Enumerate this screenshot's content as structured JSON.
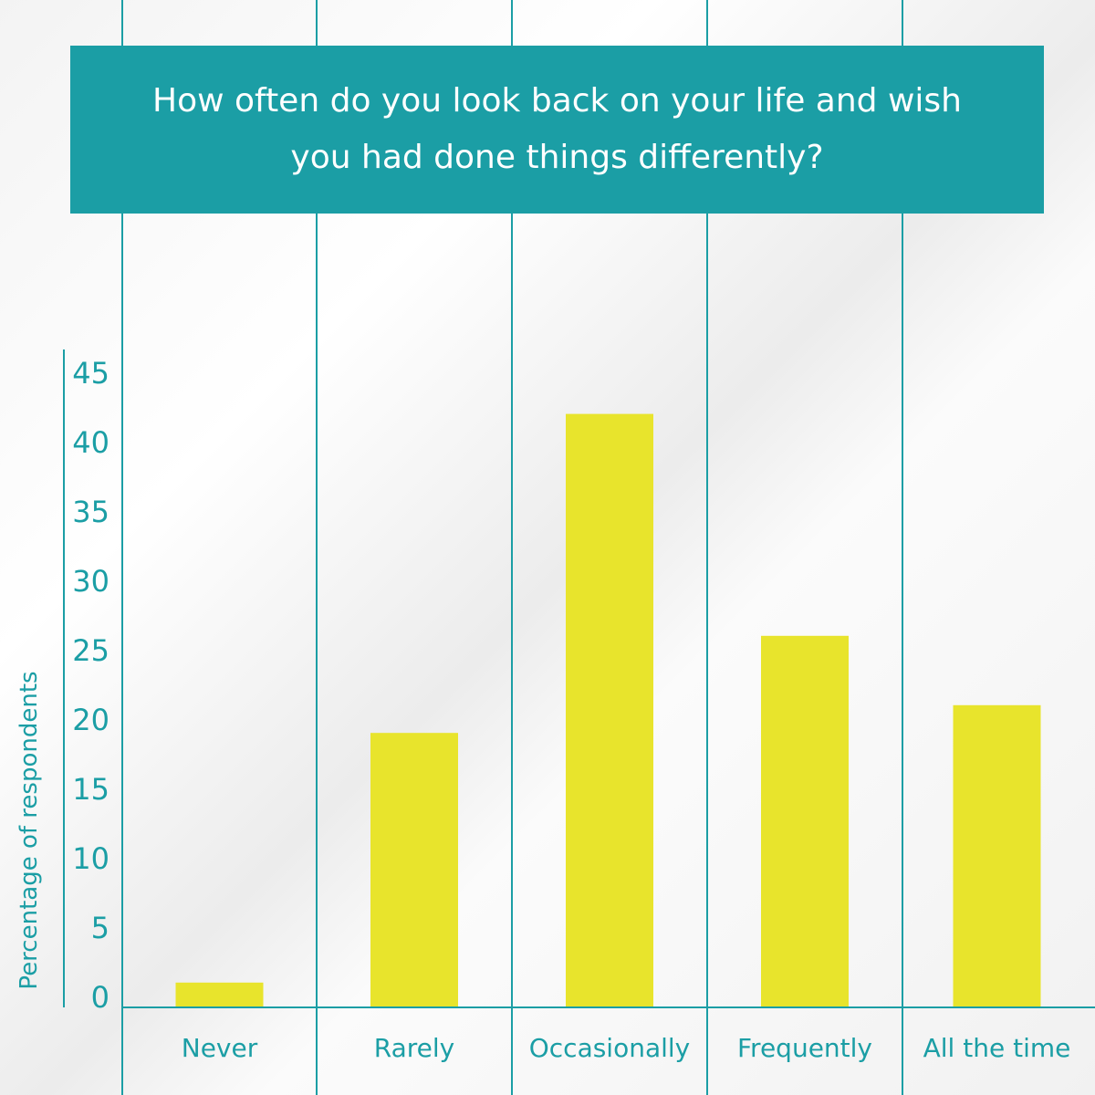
{
  "chart_data": {
    "type": "bar",
    "title": "How often do you look back on your life and wish you had done things differently?",
    "xlabel": "",
    "ylabel": "Percentage of respondents",
    "categories": [
      "Never",
      "Rarely",
      "Occasionally",
      "Frequently",
      "All the time"
    ],
    "values": [
      1,
      19,
      42,
      26,
      21
    ],
    "ylim": [
      0,
      45
    ],
    "yticks": [
      "0",
      "5",
      "10",
      "15",
      "20",
      "25",
      "30",
      "35",
      "40",
      "45"
    ],
    "grid": false,
    "legend": "none"
  },
  "colors": {
    "accent": "#1b9ea5",
    "bar": "#e8e42c",
    "background": "#f4f4f4",
    "title_text": "#ffffff"
  }
}
